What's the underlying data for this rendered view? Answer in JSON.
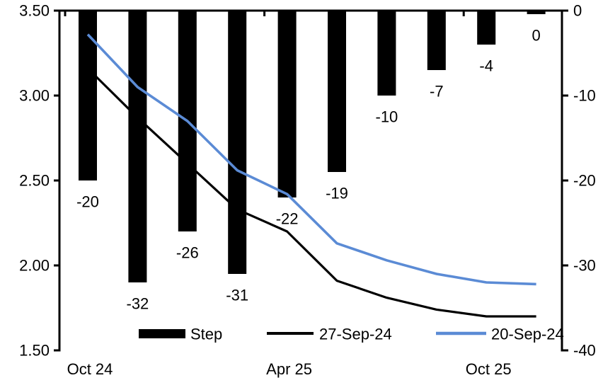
{
  "chart_data": {
    "type": "combo",
    "grid": false,
    "bar_series": {
      "name": "Step",
      "axis": "right",
      "color": "#000000",
      "values": [
        -20,
        -32,
        -26,
        -31,
        -22,
        -19,
        -10,
        -7,
        -4,
        0
      ],
      "labels": [
        "-20",
        "-32",
        "-26",
        "-31",
        "-22",
        "-19",
        "-10",
        "-7",
        "-4",
        "0"
      ]
    },
    "line_series": [
      {
        "name": "27-Sep-24",
        "axis": "left",
        "color": "#000000",
        "values": [
          3.16,
          2.87,
          2.6,
          2.33,
          2.2,
          1.91,
          1.81,
          1.74,
          1.7,
          1.7
        ]
      },
      {
        "name": "20-Sep-24",
        "axis": "left",
        "color": "#5B8BD5",
        "values": [
          3.36,
          3.05,
          2.85,
          2.56,
          2.42,
          2.13,
          2.03,
          1.95,
          1.9,
          1.89
        ]
      }
    ],
    "left_axis": {
      "min": 1.5,
      "max": 3.5,
      "tick_labels": [
        "3.50",
        "3.00",
        "2.50",
        "2.00",
        "1.50"
      ]
    },
    "right_axis": {
      "min": -40,
      "max": 0,
      "tick_labels": [
        "0",
        "-10",
        "-20",
        "-30",
        "-40"
      ]
    },
    "x_axis": {
      "labels": [
        {
          "label": "Oct 24",
          "bar_index": 0
        },
        {
          "label": "Apr 25",
          "bar_index": 4
        },
        {
          "label": "Oct 25",
          "bar_index": 8
        }
      ]
    },
    "legend": {
      "position": "bottom",
      "entries": [
        "Step",
        "27-Sep-24",
        "20-Sep-24"
      ]
    }
  }
}
